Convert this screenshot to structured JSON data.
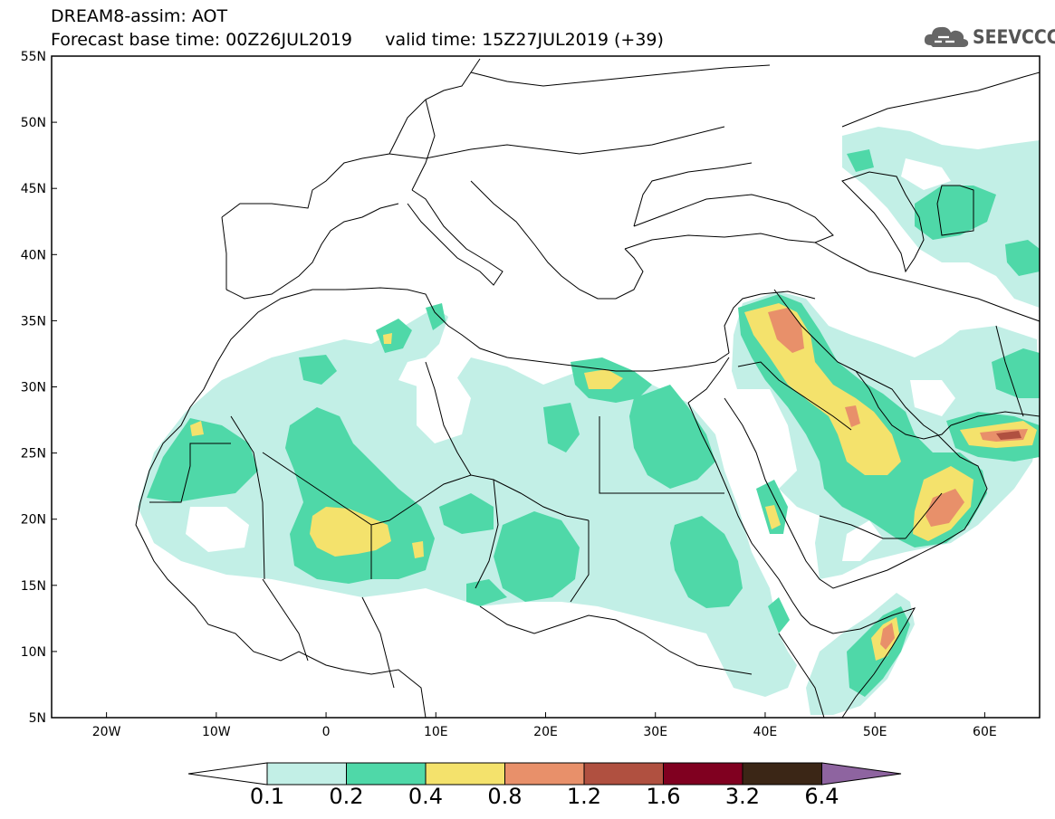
{
  "header": {
    "title": "DREAM8-assim: AOT",
    "forecast_label": "Forecast base time: 00Z26JUL2019",
    "valid_label": "valid time: 15Z27JUL2019 (+39)"
  },
  "logo": {
    "text": "SEEVCCC",
    "icon": "cloud-icon"
  },
  "map": {
    "lat_labels": [
      "55N",
      "50N",
      "45N",
      "40N",
      "35N",
      "30N",
      "25N",
      "20N",
      "15N",
      "10N",
      "5N"
    ],
    "lon_labels": [
      "20W",
      "10W",
      "0",
      "10E",
      "20E",
      "30E",
      "40E",
      "50E",
      "60E"
    ],
    "lon_range": [
      -25,
      65
    ],
    "lat_range": [
      5,
      55
    ]
  },
  "colorbar": {
    "colors": [
      "#c2efe6",
      "#4fd8a8",
      "#f4e26c",
      "#e8906a",
      "#b05040",
      "#800020",
      "#3b2616",
      "#8e64a0"
    ],
    "labels": [
      "0.1",
      "0.2",
      "0.4",
      "0.8",
      "1.2",
      "1.6",
      "3.2",
      "6.4"
    ]
  }
}
